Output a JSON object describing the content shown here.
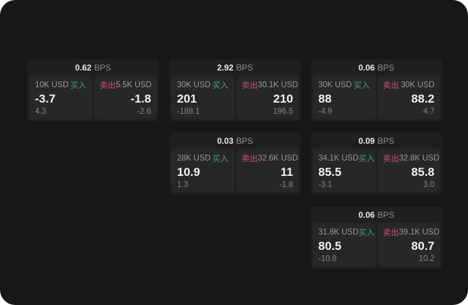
{
  "theme": {
    "screen_bg": "#171717",
    "card_bg": "#1f1f1f",
    "panel_bg": "#272727",
    "buy_color": "#41a368",
    "sell_color": "#c9566e"
  },
  "cards": [
    {
      "bps": "0.62",
      "unit": "BPS",
      "buy": {
        "amount": "10K USD",
        "label": "买入",
        "value": "-3.7",
        "sub": "4.3"
      },
      "sell": {
        "label": "卖出",
        "amount": "5.5K USD",
        "value": "-1.8",
        "sub": "-2.6"
      }
    },
    {
      "bps": "2.92",
      "unit": "BPS",
      "buy": {
        "amount": "30K USD",
        "label": "买入",
        "value": "201",
        "sub": "-188.1"
      },
      "sell": {
        "label": "卖出",
        "amount": "30.1K USD",
        "value": "210",
        "sub": "196.5"
      }
    },
    {
      "bps": "0.06",
      "unit": "BPS",
      "buy": {
        "amount": "30K USD",
        "label": "买入",
        "value": "88",
        "sub": "-4.9"
      },
      "sell": {
        "label": "卖出",
        "amount": "30K USD",
        "value": "88.2",
        "sub": "4.7"
      }
    },
    {
      "bps": "0.03",
      "unit": "BPS",
      "buy": {
        "amount": "28K USD",
        "label": "买入",
        "value": "10.9",
        "sub": "1.3"
      },
      "sell": {
        "label": "卖出",
        "amount": "32.6K USD",
        "value": "11",
        "sub": "-1.8"
      }
    },
    {
      "bps": "0.09",
      "unit": "BPS",
      "buy": {
        "amount": "34.1K USD",
        "label": "买入",
        "value": "85.5",
        "sub": "-3.1"
      },
      "sell": {
        "label": "卖出",
        "amount": "32.8K USD",
        "value": "85.8",
        "sub": "3.0"
      }
    },
    {
      "bps": "0.06",
      "unit": "BPS",
      "buy": {
        "amount": "31.8K USD",
        "label": "买入",
        "value": "80.5",
        "sub": "-10.8"
      },
      "sell": {
        "label": "卖出",
        "amount": "39.1K USD",
        "value": "80.7",
        "sub": "10.2"
      }
    }
  ]
}
